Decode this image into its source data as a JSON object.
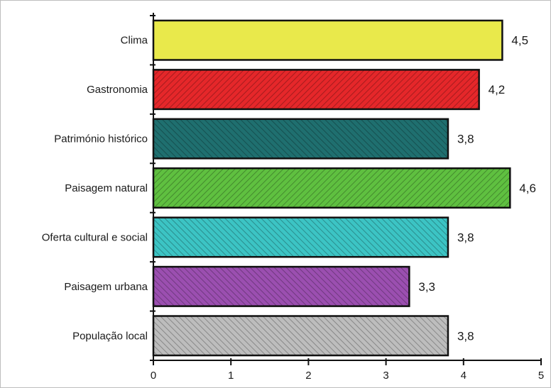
{
  "chart_data": {
    "type": "bar",
    "orientation": "horizontal",
    "title": "",
    "xlabel": "",
    "ylabel": "",
    "xlim": [
      0,
      5
    ],
    "x_ticks": [
      0,
      1,
      2,
      3,
      4,
      5
    ],
    "grid": false,
    "legend": "none",
    "categories": [
      "Clima",
      "Gastronomia",
      "Património histórico",
      "Paisagem natural",
      "Oferta cultural e social",
      "Paisagem urbana",
      "População local"
    ],
    "values": [
      4.5,
      4.2,
      3.8,
      4.6,
      3.8,
      3.3,
      3.8
    ],
    "value_labels": [
      "4,5",
      "4,2",
      "3,8",
      "4,6",
      "3,8",
      "3,3",
      "3,8"
    ],
    "bar_colors": [
      "#e9e94b",
      "#e5272a",
      "#1f6f6f",
      "#5fc040",
      "#3cc4c4",
      "#9b4fb0",
      "#bdbdbd"
    ],
    "bar_patterns": [
      "solid",
      "hatch",
      "hatch",
      "hatch",
      "hatch",
      "hatch",
      "hatch"
    ]
  }
}
